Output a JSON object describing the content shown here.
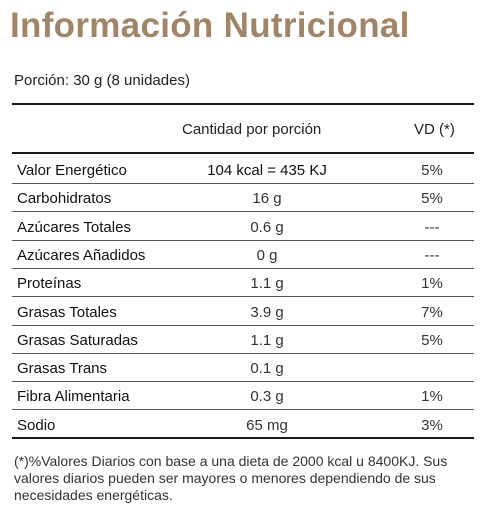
{
  "title": "Información Nutricional",
  "serving": "Porción: 30 g (8 unidades)",
  "header": {
    "amount": "Cantidad por porción",
    "dv": "VD (*)"
  },
  "rows": [
    {
      "name": "Valor Energético",
      "amount": "104 kcal = 435 KJ",
      "dv": "5%"
    },
    {
      "name": "Carbohidratos",
      "amount": "16 g",
      "dv": "5%"
    },
    {
      "name": "Azúcares Totales",
      "amount": "0.6 g",
      "dv": "---"
    },
    {
      "name": "Azúcares Añadidos",
      "amount": "0 g",
      "dv": "---"
    },
    {
      "name": "Proteínas",
      "amount": "1.1 g",
      "dv": "1%"
    },
    {
      "name": "Grasas Totales",
      "amount": "3.9 g",
      "dv": "7%"
    },
    {
      "name": "Grasas Saturadas",
      "amount": "1.1 g",
      "dv": "5%"
    },
    {
      "name": "Grasas Trans",
      "amount": "0.1 g",
      "dv": ""
    },
    {
      "name": "Fibra Alimentaria",
      "amount": "0.3 g",
      "dv": "1%"
    },
    {
      "name": "Sodio",
      "amount": "65 mg",
      "dv": "3%"
    }
  ],
  "footnote": "(*)%Valores Diarios con base a una dieta de 2000 kcal u 8400KJ. Sus valores diarios pueden ser mayores o menores dependiendo de sus necesidades energéticas.",
  "colors": {
    "title": "#a08568",
    "text": "#1a1a1a"
  }
}
